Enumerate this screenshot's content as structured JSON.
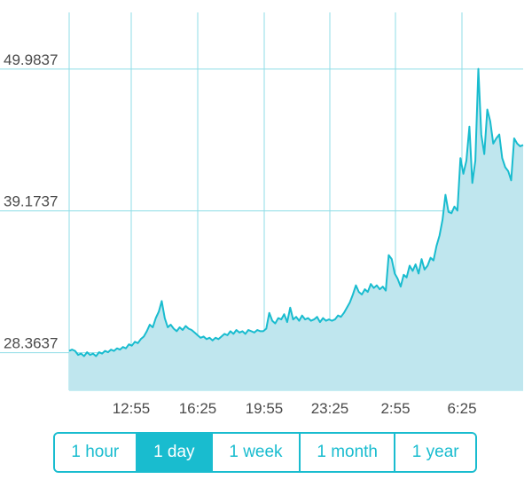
{
  "chart_data": {
    "type": "area",
    "y_ticks": [
      "49.9837",
      "39.1737",
      "28.3637"
    ],
    "x_ticks": [
      "12:55",
      "16:25",
      "19:55",
      "23:25",
      "2:55",
      "6:25"
    ],
    "ylim": [
      25.5,
      54.3
    ],
    "grid": true,
    "series": [
      {
        "color": "#19bccf",
        "values": [
          28.5,
          28.6,
          28.5,
          28.2,
          28.3,
          28.1,
          28.4,
          28.2,
          28.3,
          28.1,
          28.4,
          28.3,
          28.5,
          28.4,
          28.6,
          28.5,
          28.7,
          28.6,
          28.8,
          28.7,
          29.0,
          28.9,
          29.2,
          29.1,
          29.4,
          29.6,
          30.0,
          30.5,
          30.3,
          31.0,
          31.5,
          32.3,
          31.0,
          30.3,
          30.5,
          30.2,
          30.0,
          30.3,
          30.1,
          30.4,
          30.2,
          30.1,
          29.9,
          29.7,
          29.5,
          29.6,
          29.4,
          29.5,
          29.3,
          29.5,
          29.4,
          29.6,
          29.8,
          29.7,
          30.0,
          29.8,
          30.1,
          29.9,
          30.0,
          29.8,
          30.1,
          30.0,
          29.9,
          30.1,
          30.0,
          30.0,
          30.2,
          31.4,
          30.8,
          30.6,
          31.0,
          30.9,
          31.3,
          30.7,
          31.8,
          30.9,
          31.1,
          30.8,
          31.2,
          30.9,
          31.0,
          30.8,
          30.9,
          31.1,
          30.7,
          31.0,
          30.8,
          30.9,
          30.8,
          30.9,
          31.2,
          31.1,
          31.4,
          31.8,
          32.2,
          32.8,
          33.5,
          33.0,
          32.8,
          33.2,
          33.0,
          33.6,
          33.3,
          33.5,
          33.2,
          33.4,
          33.1,
          35.8,
          35.5,
          34.4,
          34.0,
          33.4,
          34.3,
          34.1,
          35.0,
          34.6,
          35.1,
          34.4,
          35.5,
          34.7,
          35.0,
          35.6,
          35.4,
          36.5,
          37.3,
          38.5,
          40.4,
          39.1,
          39.0,
          39.5,
          39.2,
          43.2,
          42.0,
          43.0,
          45.6,
          41.3,
          43.0,
          50.0,
          45.0,
          43.5,
          46.9,
          46.0,
          44.3,
          44.7,
          45.0,
          43.2,
          42.5,
          42.2,
          41.5,
          44.7,
          44.3,
          44.1,
          44.2
        ]
      }
    ]
  },
  "range_selector": {
    "options": [
      "1 hour",
      "1 day",
      "1 week",
      "1 month",
      "1 year"
    ],
    "selected_index": 1
  }
}
